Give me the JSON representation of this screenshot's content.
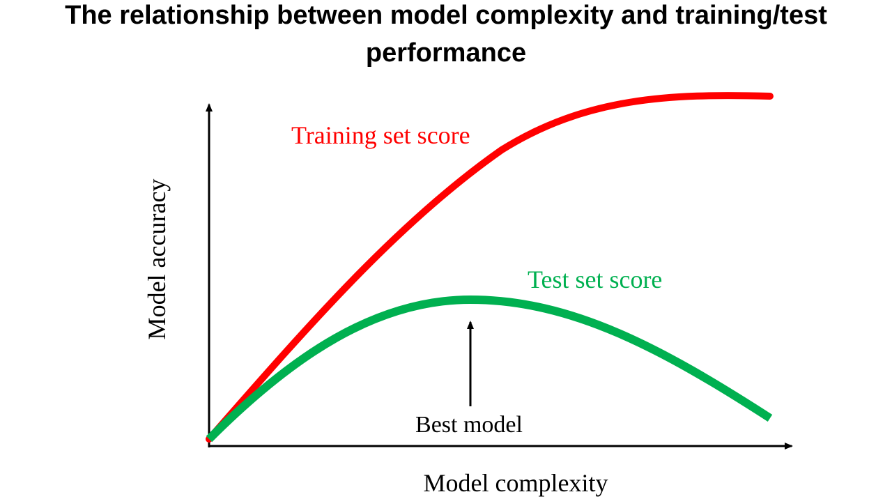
{
  "title": {
    "line1": "The relationship between model complexity and training/test",
    "line2": "performance"
  },
  "axes": {
    "xlabel": "Model complexity",
    "ylabel": "Model accuracy"
  },
  "curves": {
    "training": {
      "label": "Training set score",
      "color": "#ff0000"
    },
    "test": {
      "label": "Test set score",
      "color": "#00b050"
    }
  },
  "annotation": {
    "label": "Best model"
  },
  "colors": {
    "axis": "#000000",
    "text": "#000000"
  }
}
